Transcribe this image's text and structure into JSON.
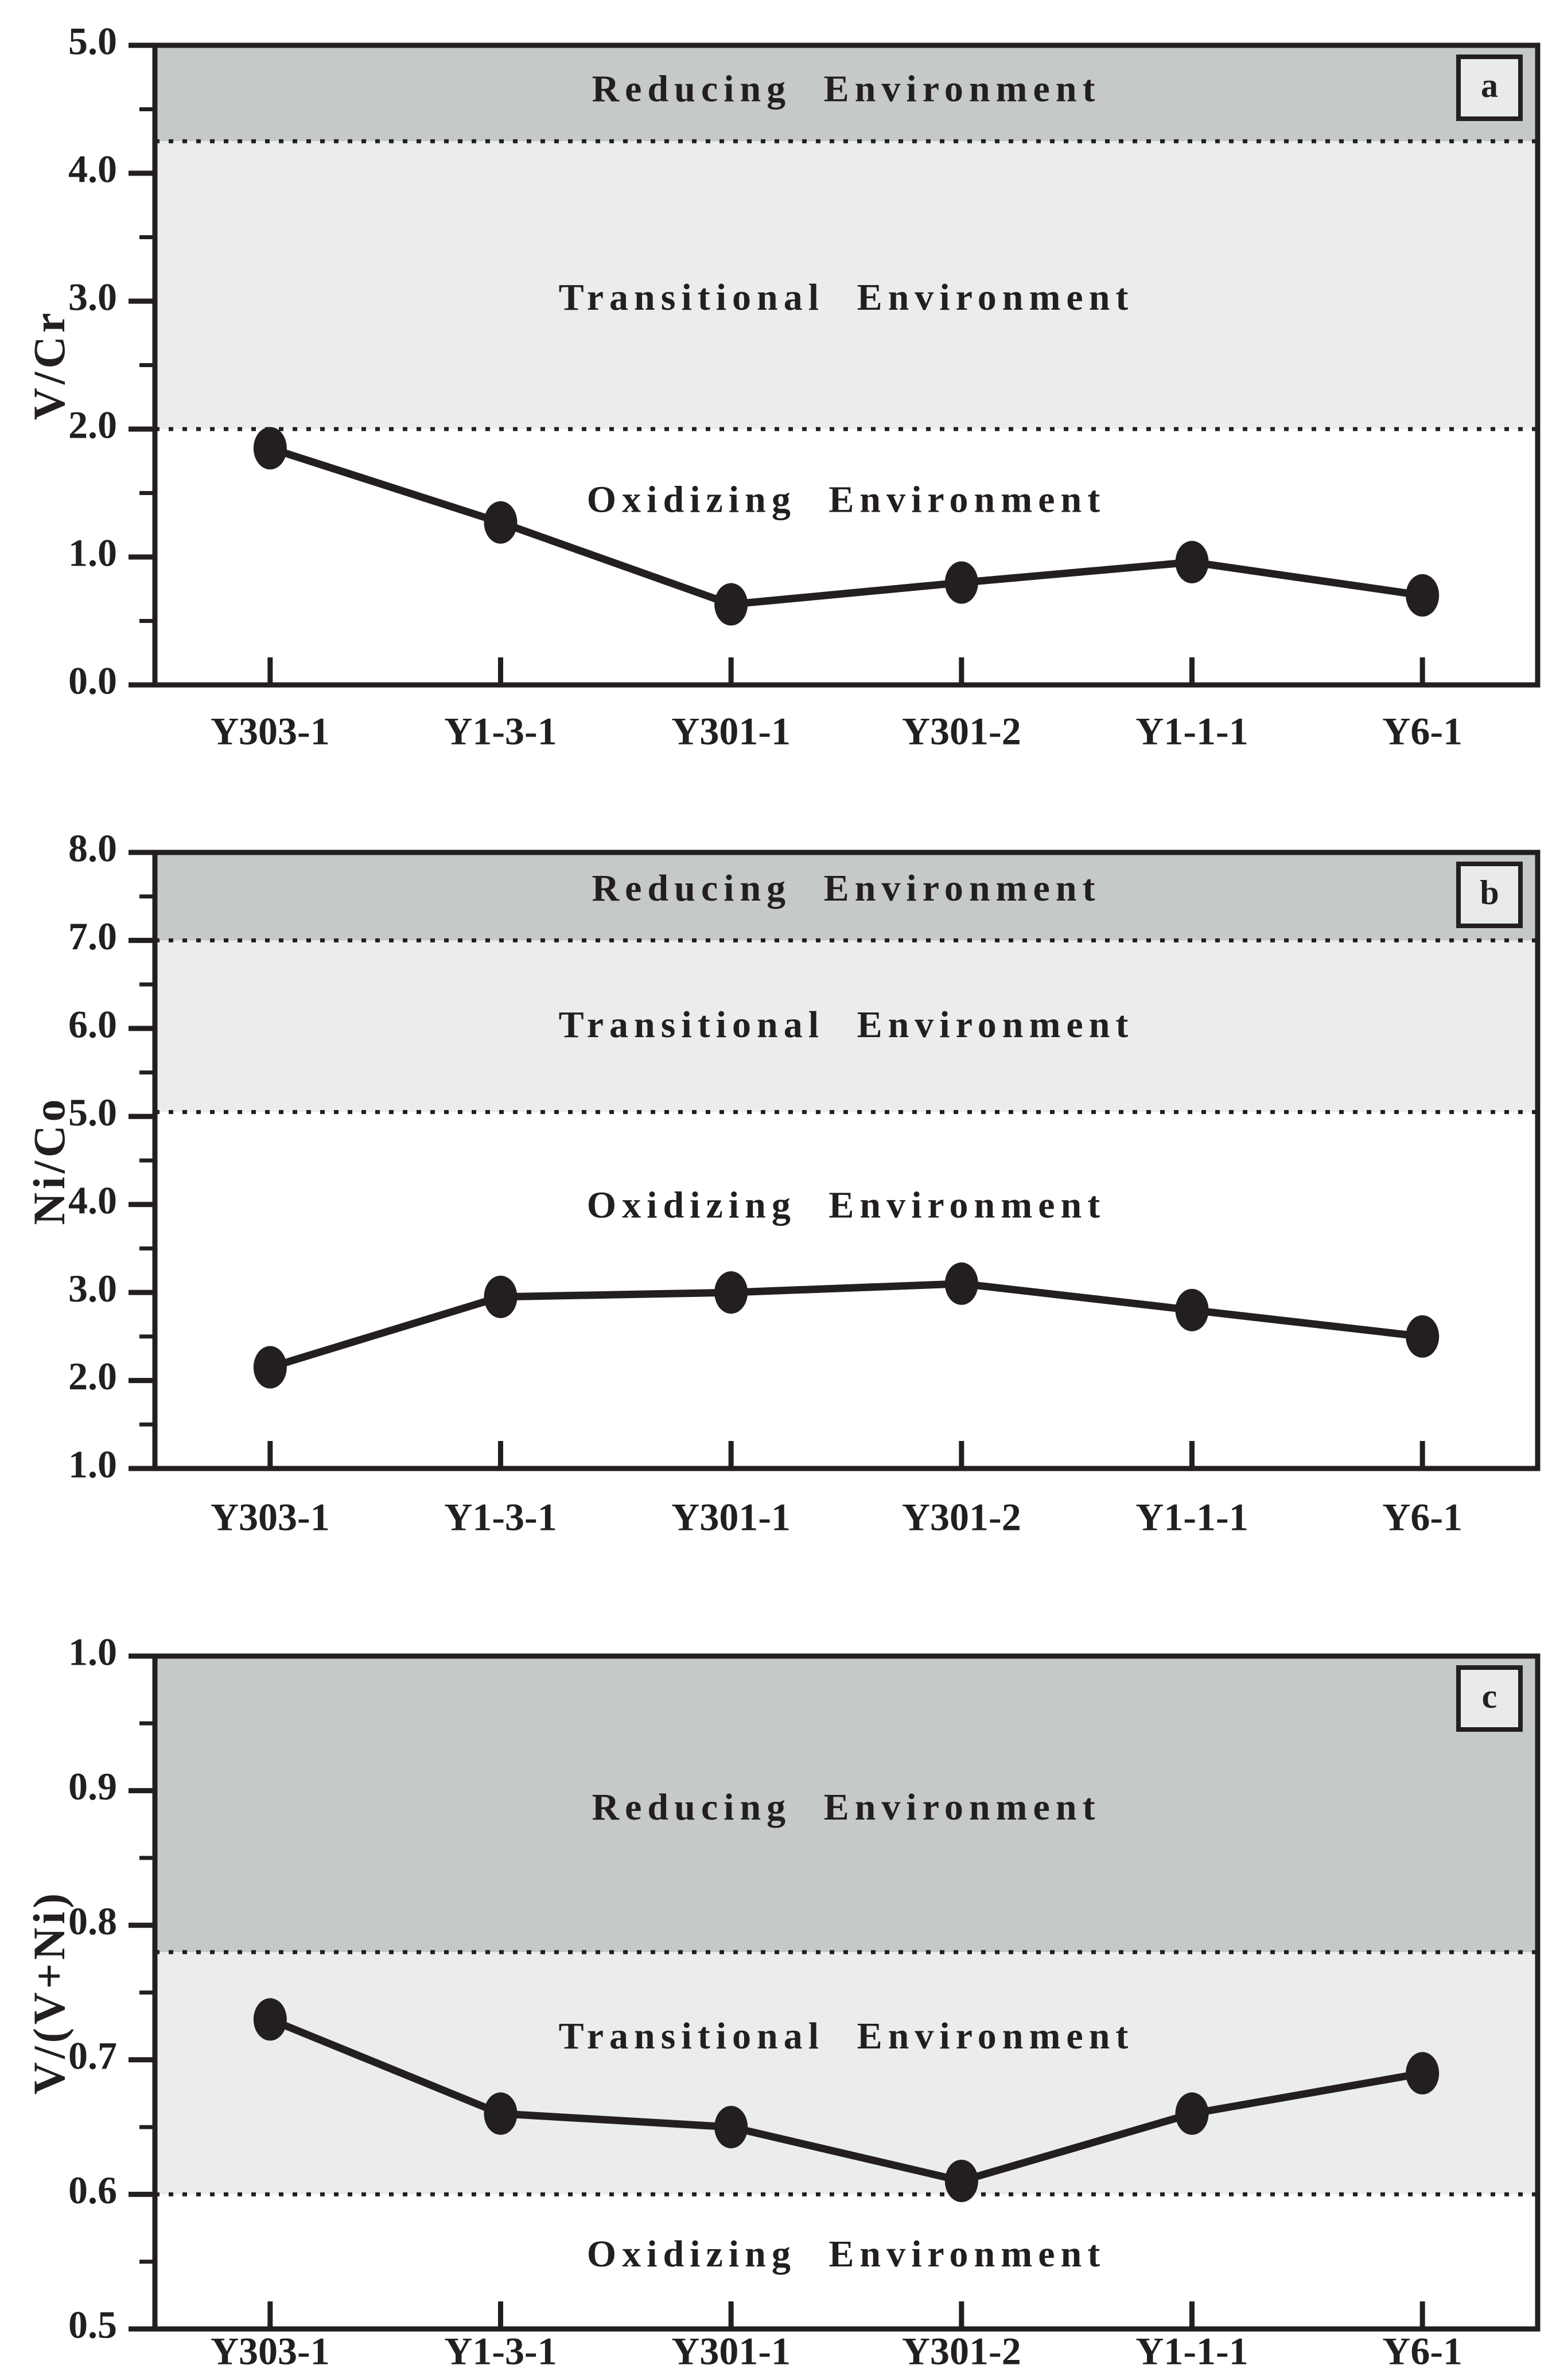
{
  "figure": {
    "background": "#ffffff",
    "ink_color": "#231f20",
    "zone_fill_reducing": "#c6cac6",
    "zone_fill_transitional": "#ebedeb",
    "zone_fill_oxidizing": "#ffffff",
    "panel_letter_box_fill": "#e9ebe8"
  },
  "chart_data": [
    {
      "type": "line",
      "panel_letter": "a",
      "ylabel": "V/Cr",
      "categories": [
        "Y303-1",
        "Y1-3-1",
        "Y301-1",
        "Y301-2",
        "Y1-1-1",
        "Y6-1"
      ],
      "values": [
        1.85,
        1.27,
        0.63,
        0.8,
        0.96,
        0.7
      ],
      "ylim": [
        0.0,
        5.0
      ],
      "ytick_values": [
        0,
        1,
        2,
        3,
        4,
        5
      ],
      "ytick_labels": [
        "0.0",
        "1.0",
        "2.0",
        "3.0",
        "4.0",
        "5.0"
      ],
      "minor_tick_step": 0.5,
      "grid": false,
      "legend": false,
      "boundaries": [
        4.25,
        2.0
      ],
      "zones": [
        {
          "name": "reducing",
          "label": "Reducing Environment",
          "from": 4.25,
          "to": 5.0,
          "label_y": 4.63
        },
        {
          "name": "transitional",
          "label": "Transitional Environment",
          "from": 2.0,
          "to": 4.25,
          "label_y": 3.0
        },
        {
          "name": "oxidizing",
          "label": "Oxidizing Environment",
          "from": 0.0,
          "to": 2.0,
          "label_y": 1.42
        }
      ]
    },
    {
      "type": "line",
      "panel_letter": "b",
      "ylabel": "Ni/Co",
      "categories": [
        "Y303-1",
        "Y1-3-1",
        "Y301-1",
        "Y301-2",
        "Y1-1-1",
        "Y6-1"
      ],
      "values": [
        2.15,
        2.95,
        3.0,
        3.1,
        2.8,
        2.5
      ],
      "ylim": [
        1.0,
        8.0
      ],
      "ytick_values": [
        1,
        2,
        3,
        4,
        5,
        6,
        7,
        8
      ],
      "ytick_labels": [
        "1.0",
        "2.0",
        "3.0",
        "4.0",
        "5.0",
        "6.0",
        "7.0",
        "8.0"
      ],
      "minor_tick_step": 0.5,
      "grid": false,
      "legend": false,
      "boundaries": [
        7.0,
        5.05
      ],
      "zones": [
        {
          "name": "reducing",
          "label": "Reducing Environment",
          "from": 7.0,
          "to": 8.0,
          "label_y": 7.55
        },
        {
          "name": "transitional",
          "label": "Transitional Environment",
          "from": 5.05,
          "to": 7.0,
          "label_y": 6.0
        },
        {
          "name": "oxidizing",
          "label": "Oxidizing Environment",
          "from": 1.0,
          "to": 5.05,
          "label_y": 3.95
        }
      ]
    },
    {
      "type": "line",
      "panel_letter": "c",
      "ylabel": "V/(V+Ni)",
      "categories": [
        "Y303-1",
        "Y1-3-1",
        "Y301-1",
        "Y301-2",
        "Y1-1-1",
        "Y6-1"
      ],
      "values": [
        0.73,
        0.66,
        0.65,
        0.61,
        0.66,
        0.69
      ],
      "ylim": [
        0.5,
        1.0
      ],
      "ytick_values": [
        0.5,
        0.6,
        0.7,
        0.8,
        0.9,
        1.0
      ],
      "ytick_labels": [
        "0.5",
        "0.6",
        "0.7",
        "0.8",
        "0.9",
        "1.0"
      ],
      "minor_tick_step": 0.05,
      "grid": false,
      "legend": false,
      "boundaries": [
        0.78,
        0.6
      ],
      "zones": [
        {
          "name": "reducing",
          "label": "Reducing Environment",
          "from": 0.78,
          "to": 1.0,
          "label_y": 0.885
        },
        {
          "name": "transitional",
          "label": "Transitional Environment",
          "from": 0.6,
          "to": 0.78,
          "label_y": 0.715
        },
        {
          "name": "oxidizing",
          "label": "Oxidizing Environment",
          "from": 0.5,
          "to": 0.6,
          "label_y": 0.553
        }
      ]
    }
  ]
}
